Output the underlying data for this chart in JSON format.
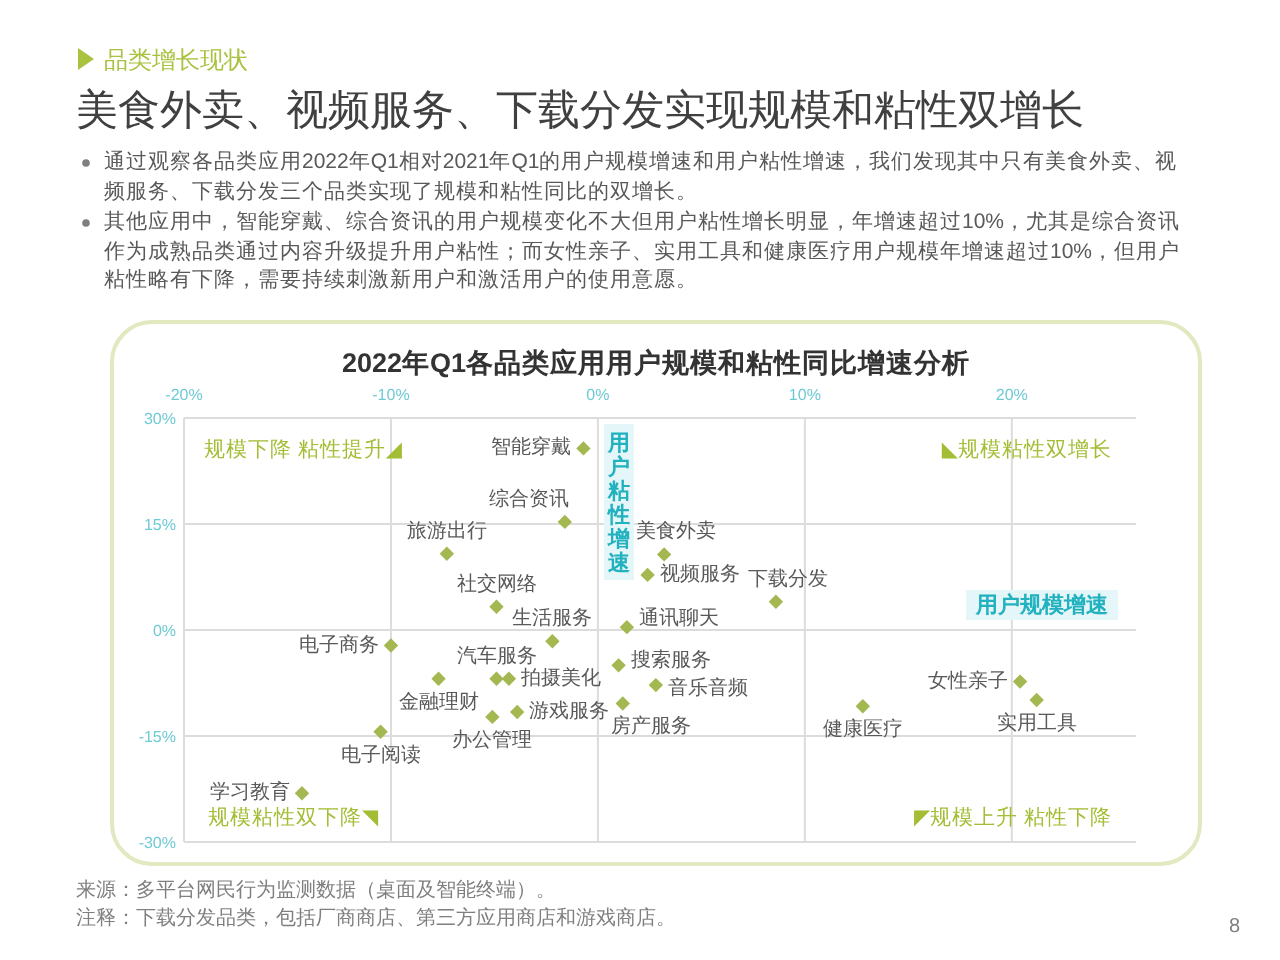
{
  "chart_data": {
    "type": "scatter",
    "title": "美食外卖、视频服务、下载分发实现规模和粘性双增长",
    "subtitle": "2022年Q1各品类应用用户规模和粘性同比增速分析",
    "xlabel": "用户规模增速",
    "ylabel": "用户粘性增速",
    "series": [
      {
        "name": "智能穿戴",
        "color": "#a3b850",
        "x": [
          -0.7
        ],
        "values": [
          25.7
        ]
      },
      {
        "name": "综合资讯",
        "color": "#a3b850",
        "x": [
          -1.6
        ],
        "values": [
          15.3
        ]
      },
      {
        "name": "旅游出行",
        "color": "#a3b850",
        "x": [
          -7.3
        ],
        "values": [
          10.8
        ]
      },
      {
        "name": "社交网络",
        "color": "#a3b850",
        "x": [
          -4.9
        ],
        "values": [
          3.3
        ]
      },
      {
        "name": "美食外卖",
        "color": "#a3b850",
        "x": [
          3.2
        ],
        "values": [
          10.7
        ]
      },
      {
        "name": "视频服务",
        "color": "#a3b850",
        "x": [
          2.4
        ],
        "values": [
          7.8
        ]
      },
      {
        "name": "下载分发",
        "color": "#a3b850",
        "x": [
          8.6
        ],
        "values": [
          4.0
        ]
      },
      {
        "name": "通讯聊天",
        "color": "#a3b850",
        "x": [
          1.4
        ],
        "values": [
          0.4
        ]
      },
      {
        "name": "电子商务",
        "color": "#a3b850",
        "x": [
          -10.0
        ],
        "values": [
          -2.2
        ]
      },
      {
        "name": "生活服务",
        "color": "#a3b850",
        "x": [
          -2.2
        ],
        "values": [
          -1.6
        ]
      },
      {
        "name": "汽车服务",
        "color": "#a3b850",
        "x": [
          -4.9
        ],
        "values": [
          -6.9
        ]
      },
      {
        "name": "拍摄美化",
        "color": "#a3b850",
        "x": [
          -4.3
        ],
        "values": [
          -6.9
        ]
      },
      {
        "name": "金融理财",
        "color": "#a3b850",
        "x": [
          -7.7
        ],
        "values": [
          -6.9
        ]
      },
      {
        "name": "游戏服务",
        "color": "#a3b850",
        "x": [
          -3.9
        ],
        "values": [
          -11.6
        ]
      },
      {
        "name": "办公管理",
        "color": "#a3b850",
        "x": [
          -5.1
        ],
        "values": [
          -12.3
        ]
      },
      {
        "name": "电子阅读",
        "color": "#a3b850",
        "x": [
          -10.5
        ],
        "values": [
          -14.4
        ]
      },
      {
        "name": "学习教育",
        "color": "#a3b850",
        "x": [
          -14.3
        ],
        "values": [
          -23.1
        ]
      },
      {
        "name": "搜索服务",
        "color": "#a3b850",
        "x": [
          1.0
        ],
        "values": [
          -5.0
        ]
      },
      {
        "name": "音乐音频",
        "color": "#a3b850",
        "x": [
          2.8
        ],
        "values": [
          -7.8
        ]
      },
      {
        "name": "房产服务",
        "color": "#a3b850",
        "x": [
          1.2
        ],
        "values": [
          -10.4
        ]
      },
      {
        "name": "健康医疗",
        "color": "#a3b850",
        "x": [
          12.8
        ],
        "values": [
          -10.8
        ]
      },
      {
        "name": "女性亲子",
        "color": "#a3b850",
        "x": [
          20.4
        ],
        "values": [
          -7.3
        ]
      },
      {
        "name": "实用工具",
        "color": "#a3b850",
        "x": [
          21.2
        ],
        "values": [
          -9.9
        ]
      }
    ],
    "xlim": [
      -20,
      26
    ],
    "ylim": [
      -30,
      30
    ],
    "xticks": [
      {
        "value": -20,
        "label": "-20%"
      },
      {
        "value": -10,
        "label": "-10%"
      },
      {
        "value": 0,
        "label": "0%"
      },
      {
        "value": 10,
        "label": "10%"
      },
      {
        "value": 20,
        "label": "20%"
      }
    ],
    "yticks": [
      {
        "value": 30,
        "label": "30%"
      },
      {
        "value": 15,
        "label": "15%"
      },
      {
        "value": 0,
        "label": "0%"
      },
      {
        "value": -15,
        "label": "-15%"
      },
      {
        "value": -30,
        "label": "-30%"
      }
    ],
    "grid": true,
    "marker": "diamond",
    "annotations": [
      "品类增长现状",
      "通过观察各品类应用2022年Q1相对2021年Q1的用户规模增速和用户粘性增速，我们发现其中只有美食外卖、视频服务、下载分发三个品类实现了规模和粘性同比的双增长。",
      "其他应用中，智能穿戴、综合资讯的用户规模变化不大但用户粘性增长明显，年增速超过10%，尤其是综合资讯作为成熟品类通过内容升级提升用户粘性；而女性亲子、实用工具和健康医疗用户规模年增速超过10%，但用户粘性略有下降，需要持续刺激新用户和激活用户的使用意愿。",
      "规模下降 粘性提升◢",
      "◣规模粘性双增长",
      "规模粘性双下降◥",
      "◤规模上升 粘性下降",
      "来源：多平台网民行为监测数据（桌面及智能终端）。",
      "注释：下载分发品类，包括厂商商店、第三方应用商店和游戏商店。",
      "8"
    ]
  }
}
